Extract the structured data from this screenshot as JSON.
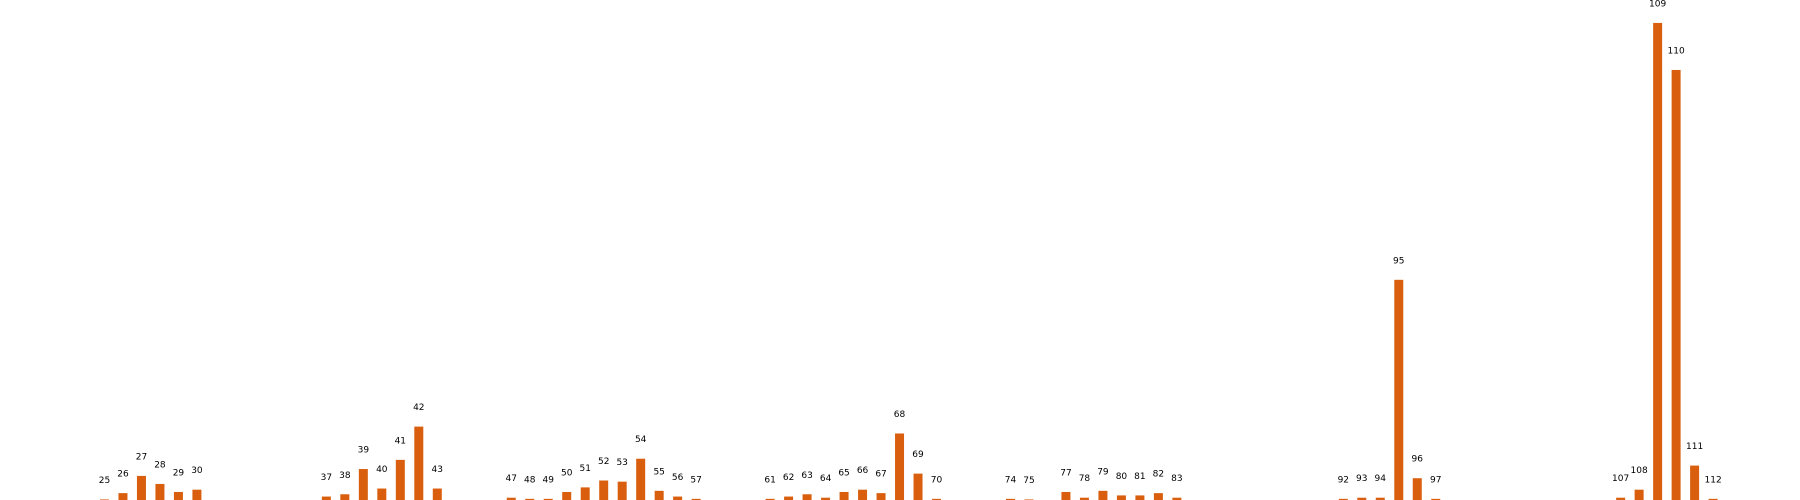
{
  "chart_data": {
    "type": "bar",
    "x": [
      25,
      26,
      27,
      28,
      29,
      30,
      37,
      38,
      39,
      40,
      41,
      42,
      43,
      47,
      48,
      49,
      50,
      51,
      52,
      53,
      54,
      55,
      56,
      57,
      61,
      62,
      63,
      64,
      65,
      66,
      67,
      68,
      69,
      70,
      74,
      75,
      77,
      78,
      79,
      80,
      81,
      82,
      83,
      92,
      93,
      94,
      95,
      96,
      97,
      107,
      108,
      109,
      110,
      111,
      112
    ],
    "values": [
      0.5,
      6,
      21,
      14,
      7,
      9,
      3,
      5,
      27,
      10,
      35,
      64,
      10,
      2,
      1,
      1,
      7,
      11,
      17,
      16,
      36,
      8,
      3,
      1,
      1,
      3,
      5,
      2,
      7,
      9,
      6,
      58,
      23,
      1,
      1,
      0.5,
      7,
      2,
      8,
      4,
      4,
      6,
      2,
      1,
      2,
      2,
      192,
      19,
      1,
      2,
      9,
      416,
      375,
      30,
      1
    ],
    "color": "#d95f0e",
    "xlim": [
      19.35,
      116.7
    ],
    "ylim": [
      0,
      436
    ]
  }
}
